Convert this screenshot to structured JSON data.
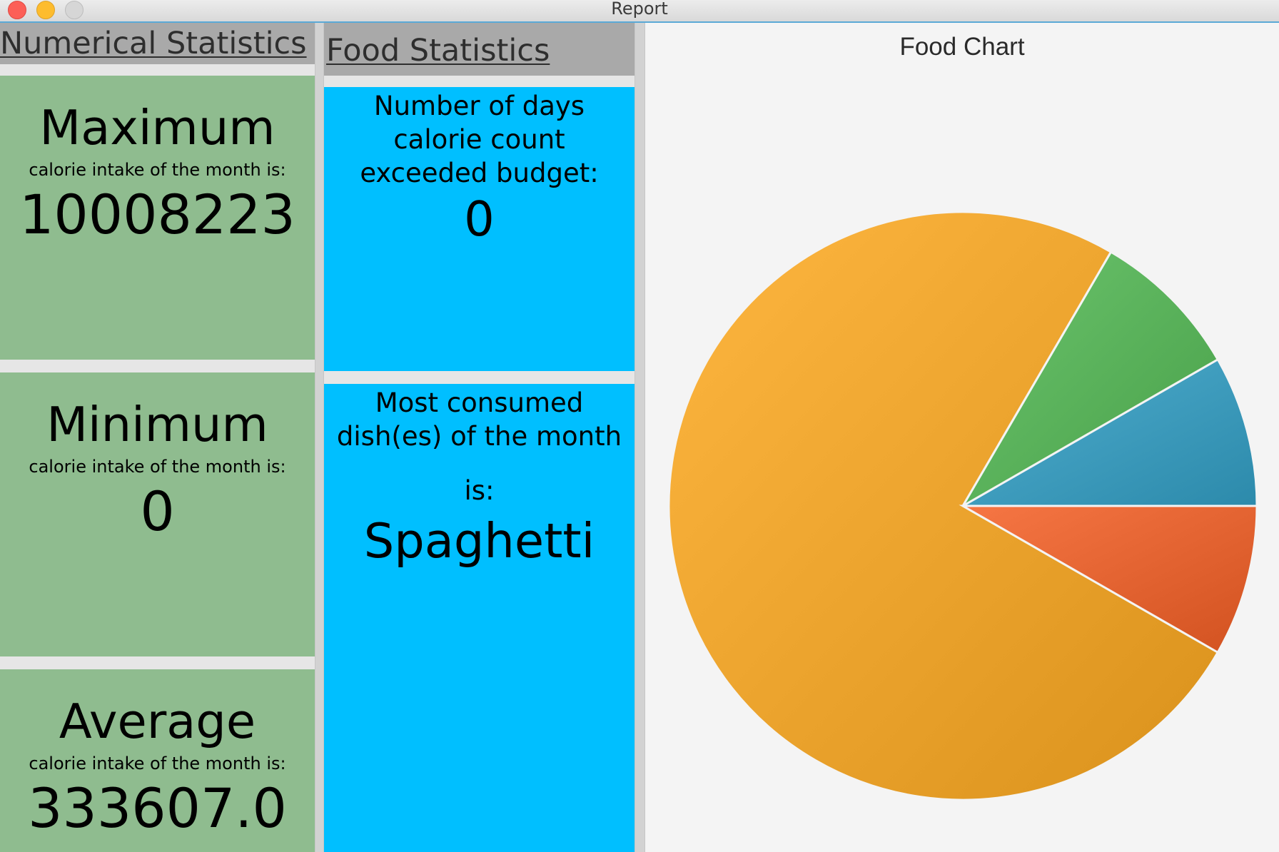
{
  "window": {
    "title": "Report"
  },
  "numerical": {
    "header": "Numerical Statistics",
    "max": {
      "title": "Maximum",
      "subtitle": "calorie intake of the month is:",
      "value": "10008223"
    },
    "min": {
      "title": "Minimum",
      "subtitle": "calorie intake of the month is:",
      "value": "0"
    },
    "avg": {
      "title": "Average",
      "subtitle": "calorie intake of the month is:",
      "value": "333607.0"
    }
  },
  "food": {
    "header": "Food Statistics",
    "days": {
      "line1": "Number of days",
      "line2": "calorie count",
      "line3": "exceeded budget:",
      "value": "0"
    },
    "dish": {
      "line1": "Most consumed",
      "line2": "dish(es) of the month",
      "line3": "is:",
      "value": "Spaghetti"
    }
  },
  "colors": {
    "green_card": "#8fbc8f",
    "blue_card": "#00bfff",
    "header": "#a9a9a9"
  },
  "chart_data": {
    "type": "pie",
    "title": "Food Chart",
    "start_angle_deg": 0,
    "direction": "counterclockwise",
    "legend": "none",
    "slices": [
      {
        "value": 8.3,
        "color": "#3a98b9"
      },
      {
        "value": 8.3,
        "color": "#56ae57"
      },
      {
        "value": 75.1,
        "color": "#e8a02a"
      },
      {
        "value": 8.3,
        "color": "#e0602e"
      }
    ]
  }
}
